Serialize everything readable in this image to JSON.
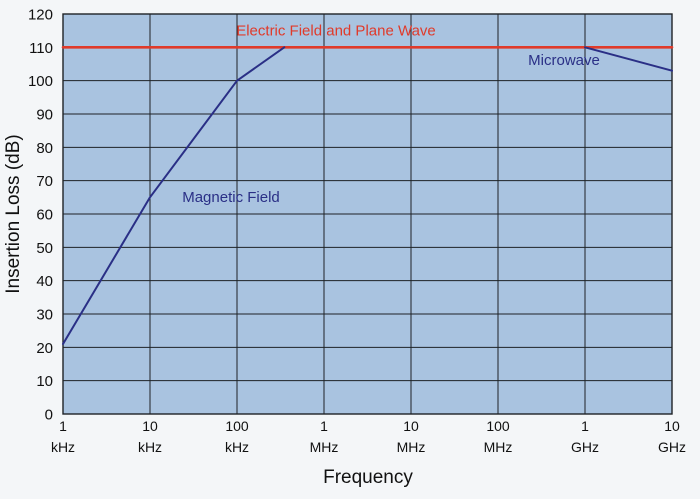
{
  "chart_data": {
    "type": "line",
    "xlabel": "Frequency",
    "ylabel": "Insertion Loss (dB)",
    "x_scale": "log",
    "xlim": [
      "1 kHz",
      "10 GHz"
    ],
    "ylim": [
      0,
      120
    ],
    "grid": true,
    "x_ticks": [
      {
        "value": "1",
        "unit": "kHz"
      },
      {
        "value": "10",
        "unit": "kHz"
      },
      {
        "value": "100",
        "unit": "kHz"
      },
      {
        "value": "1",
        "unit": "MHz"
      },
      {
        "value": "10",
        "unit": "MHz"
      },
      {
        "value": "100",
        "unit": "MHz"
      },
      {
        "value": "1",
        "unit": "GHz"
      },
      {
        "value": "10",
        "unit": "GHz"
      }
    ],
    "y_ticks": [
      "0",
      "10",
      "20",
      "30",
      "40",
      "50",
      "60",
      "70",
      "80",
      "90",
      "100",
      "110",
      "120"
    ],
    "series": [
      {
        "name": "Electric Field and Plane Wave",
        "color": "#e03a2a",
        "points": [
          [
            "1 kHz",
            110
          ],
          [
            "10 GHz",
            110
          ]
        ]
      },
      {
        "name": "Magnetic Field",
        "color": "#2a2f86",
        "points": [
          [
            "1 kHz",
            21
          ],
          [
            "10 kHz",
            65
          ],
          [
            "100 kHz",
            100
          ],
          [
            "350 kHz",
            110
          ]
        ]
      },
      {
        "name": "Microwave",
        "color": "#2a2f86",
        "points": [
          [
            "1 GHz",
            110
          ],
          [
            "10 GHz",
            103
          ]
        ]
      }
    ]
  },
  "colors": {
    "plot_background": "#a9c3e0",
    "grid_line": "#1e2226",
    "axis_text": "#111111"
  }
}
